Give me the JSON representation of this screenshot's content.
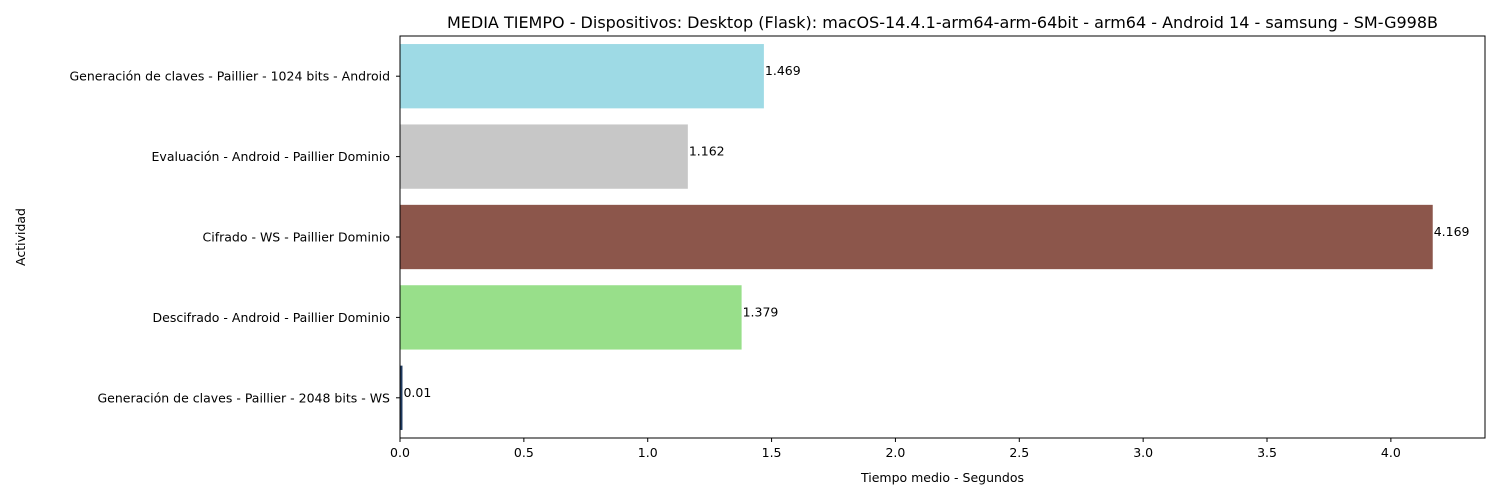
{
  "chart_data": {
    "type": "bar",
    "orientation": "horizontal",
    "title": "MEDIA TIEMPO - Dispositivos: Desktop (Flask): macOS-14.4.1-arm64-arm-64bit - arm64 - Android 14 - samsung - SM-G998B",
    "xlabel": "Tiempo medio - Segundos",
    "ylabel": "Actividad",
    "xlim": [
      0,
      4.38
    ],
    "x_ticks": [
      "0.0",
      "0.5",
      "1.0",
      "1.5",
      "2.0",
      "2.5",
      "3.0",
      "3.5",
      "4.0"
    ],
    "grid": false,
    "categories": [
      "Generación de claves - Paillier - 1024 bits - Android",
      "Evaluación - Android - Paillier Dominio",
      "Cifrado - WS - Paillier Dominio",
      "Descifrado - Android - Paillier Dominio",
      "Generación de claves - Paillier - 2048 bits - WS"
    ],
    "values": [
      1.469,
      1.162,
      4.169,
      1.379,
      0.01
    ],
    "value_labels": [
      "1.469",
      "1.162",
      "4.169",
      "1.379",
      "0.01"
    ],
    "colors": [
      "#9edae5",
      "#c7c7c7",
      "#8c564b",
      "#98df8a",
      "#1f3a5f"
    ]
  }
}
